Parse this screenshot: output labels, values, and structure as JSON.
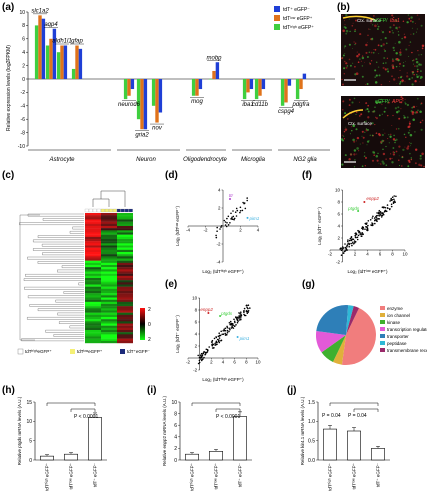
{
  "panel_labels": {
    "a": "(a)",
    "b": "(b)",
    "c": "(c)",
    "d": "(d)",
    "e": "(e)",
    "f": "(f)",
    "g": "(g)",
    "h": "(h)",
    "i": "(i)",
    "j": "(j)"
  },
  "colors": {
    "blue": "#1f3fd6",
    "orange": "#e0731b",
    "green": "#3fcf3f",
    "red": "#cc1f1f",
    "pink": "#e84393",
    "cyan": "#3bb0e0",
    "violet": "#b040d0"
  },
  "panel_a": {
    "legend": [
      "tdT⁺ eGFP⁻",
      "tdTˡᵒʷ eGFP⁺",
      "tdTʰⁱᵍʰ eGFP⁺"
    ],
    "groups": [
      "Astrocyte",
      "Neuron",
      "Oligodendrocyte",
      "Microglia",
      "NG2 glia"
    ]
  },
  "panel_b": {
    "top_green": "eGFP/",
    "top_red": "Iba1",
    "bottom_green": "eGFP/",
    "bottom_red": "APC",
    "note": "Ctx. surface"
  },
  "panel_c": {
    "scale": [
      "2",
      "0",
      "2"
    ],
    "legend": [
      "tdTʰⁱᵍʰeGFP⁺",
      "tdTˡᵒʷeGFP⁺",
      "tdT⁺eGFP⁻"
    ]
  },
  "panel_d": {
    "xlabel": "Log₂ (tdTʰⁱᵍʰ eGFP⁺)",
    "ylabel": "Log₂ (tdTˡᵒʷ eGFP⁺)",
    "genes": [
      "ttr",
      "pim1"
    ]
  },
  "panel_e": {
    "xlabel": "Log₂ (tdTʰⁱᵍʰ eGFP⁺)",
    "ylabel": "Log₂ (tdT⁺ eGFP⁻)",
    "genes": [
      "enpp2",
      "ptgds",
      "pim1"
    ]
  },
  "panel_f": {
    "xlabel": "Log₂ (tdTˡᵒʷ eGFP⁺)",
    "ylabel": "Log₂ (tdT⁺ eGFP⁻)",
    "genes": [
      "enpp2",
      "ptgds"
    ]
  },
  "panel_g": {
    "legend": [
      "enzyme",
      "ion channel",
      "kinase",
      "transcription regulator",
      "transporter",
      "peptidase",
      "transmembrane receptor"
    ]
  },
  "panel_h": {
    "ylabel": "Relative ptgds mRNA levels (A.U.)",
    "pval": "P < 0.0001"
  },
  "panel_i": {
    "ylabel": "Relative enpp2 mRNA levels (A.U.)",
    "pval": "P < 0.0001"
  },
  "panel_j": {
    "ylabel": "Relative kir4.1 mRNA levels (A.U.)",
    "pval1": "P = 0.04",
    "pval2": "P = 0.04"
  },
  "bar_x_labels": [
    "tdTʰⁱᵍʰ eGFP⁺",
    "tdTˡᵒʷ eGFP⁺",
    "tdT⁺ eGFP⁻"
  ],
  "chart_data": [
    {
      "type": "bar",
      "title": "",
      "ylabel": "Relative expression levels (log2FPKM)",
      "ylim": [
        -10,
        10
      ],
      "categories": [
        "slc1a2",
        "aqp4",
        "aldh1l1",
        "gfap",
        "neurod6",
        "gria2",
        "nov",
        "mog",
        "mobp",
        "iba1",
        "cd11b",
        "cspg4",
        "pdgfra"
      ],
      "series": [
        {
          "name": "tdT⁺ eGFP⁻",
          "values": [
            9.0,
            7.5,
            5.0,
            4.5,
            -1.5,
            -7.5,
            -5.0,
            -1.5,
            2.5,
            -1.5,
            -1.5,
            -1.0,
            0.8
          ]
        },
        {
          "name": "tdTˡᵒʷ eGFP⁺",
          "values": [
            9.5,
            6.0,
            5.0,
            5.0,
            -2.5,
            -7.5,
            -6.5,
            -2.5,
            1.2,
            -2.0,
            -2.5,
            -3.5,
            -1.5
          ]
        },
        {
          "name": "tdTʰⁱᵍʰ eGFP⁺",
          "values": [
            8.0,
            5.0,
            4.0,
            1.5,
            -3.0,
            -6.0,
            -4.0,
            -2.5,
            0.0,
            -3.0,
            -3.0,
            -4.0,
            -3.0
          ]
        }
      ]
    },
    {
      "type": "scatter",
      "xlim": [
        -4,
        4
      ],
      "ylim": [
        -4,
        4
      ],
      "x_ticks": [
        "-4",
        "-2",
        "2",
        "4"
      ],
      "y_ticks": [
        "4",
        "2",
        "-2",
        "-4"
      ]
    },
    {
      "type": "scatter",
      "xlim": [
        -2,
        10
      ],
      "ylim": [
        -2,
        10
      ],
      "x_ticks": [
        "-2",
        "2",
        "4",
        "6",
        "8",
        "10"
      ],
      "y_ticks": [
        "10",
        "8",
        "6",
        "4",
        "2",
        "-2"
      ]
    },
    {
      "type": "scatter",
      "xlim": [
        -2,
        10
      ],
      "ylim": [
        -2,
        10
      ],
      "x_ticks": [
        "-2",
        "2",
        "4",
        "6",
        "8",
        "10"
      ],
      "y_ticks": [
        "10",
        "8",
        "6",
        "4",
        "2",
        "-2"
      ]
    },
    {
      "type": "pie",
      "categories": [
        "enzyme",
        "ion channel",
        "kinase",
        "transcription regulator",
        "transporter",
        "peptidase",
        "transmembrane receptor"
      ],
      "values": [
        45,
        5,
        8,
        12,
        24,
        3,
        3
      ]
    },
    {
      "type": "bar",
      "categories": [
        "tdTʰⁱᵍʰ eGFP⁺",
        "tdTˡᵒʷ eGFP⁺",
        "tdT⁺ eGFP⁻"
      ],
      "values": [
        1.0,
        1.5,
        11.0
      ],
      "ylim": [
        0,
        15
      ],
      "y_ticks": [
        "0",
        "5",
        "10",
        "15"
      ]
    },
    {
      "type": "bar",
      "categories": [
        "tdTʰⁱᵍʰ eGFP⁺",
        "tdTˡᵒʷ eGFP⁺",
        "tdT⁺ eGFP⁻"
      ],
      "values": [
        1.0,
        1.5,
        7.5
      ],
      "ylim": [
        0,
        10
      ],
      "y_ticks": [
        "0",
        "2",
        "4",
        "6",
        "8",
        "10"
      ]
    },
    {
      "type": "bar",
      "categories": [
        "tdTʰⁱᵍʰ eGFP⁺",
        "tdTˡᵒʷ eGFP⁺",
        "tdT⁺ eGFP⁻"
      ],
      "values": [
        0.8,
        0.75,
        0.3
      ],
      "ylim": [
        0,
        1.5
      ],
      "y_ticks": [
        "0.0",
        "0.5",
        "1.0",
        "1.5"
      ]
    }
  ]
}
